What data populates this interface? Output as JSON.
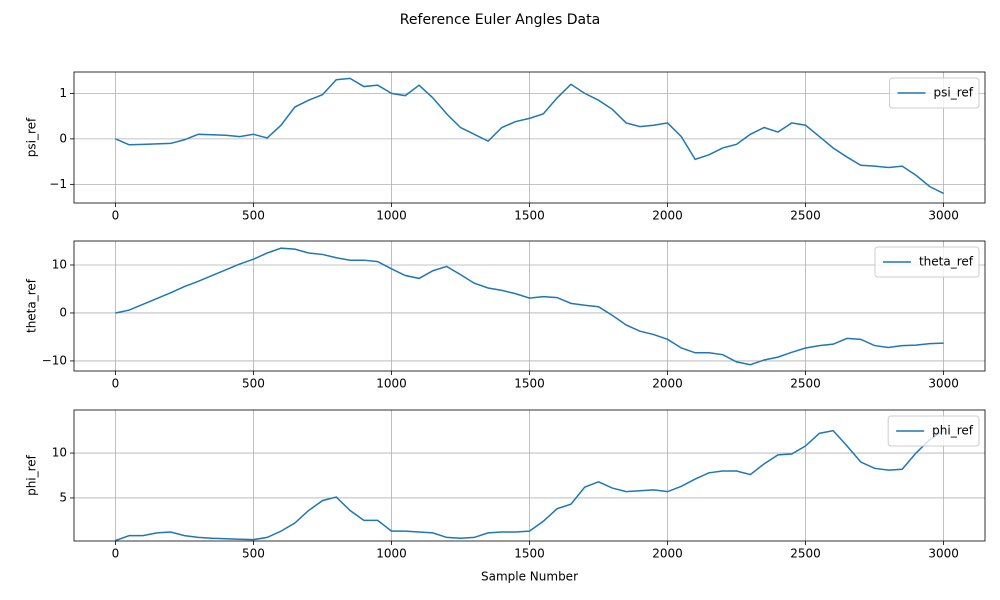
{
  "title": "Reference Euler Angles Data",
  "chart_data": [
    {
      "type": "line",
      "ylabel": "psi_ref",
      "x": [
        0,
        50,
        100,
        150,
        200,
        250,
        300,
        350,
        400,
        450,
        500,
        550,
        600,
        650,
        700,
        750,
        800,
        850,
        900,
        950,
        1000,
        1050,
        1100,
        1150,
        1200,
        1250,
        1300,
        1350,
        1400,
        1450,
        1500,
        1550,
        1600,
        1650,
        1700,
        1750,
        1800,
        1850,
        1900,
        1950,
        2000,
        2050,
        2100,
        2150,
        2200,
        2250,
        2300,
        2350,
        2400,
        2450,
        2500,
        2550,
        2600,
        2650,
        2700,
        2750,
        2800,
        2850,
        2900,
        2950,
        3000
      ],
      "series": [
        {
          "name": "psi_ref",
          "color": "#1f77b4",
          "values": [
            0,
            -0.13,
            -0.12,
            -0.11,
            -0.1,
            -0.02,
            0.1,
            0.09,
            0.08,
            0.05,
            0.1,
            0.02,
            0.3,
            0.7,
            0.85,
            0.97,
            1.3,
            1.33,
            1.15,
            1.18,
            1.0,
            0.95,
            1.18,
            0.9,
            0.55,
            0.25,
            0.1,
            -0.05,
            0.25,
            0.38,
            0.45,
            0.55,
            0.9,
            1.2,
            1.0,
            0.85,
            0.65,
            0.35,
            0.27,
            0.3,
            0.35,
            0.05,
            -0.45,
            -0.35,
            -0.2,
            -0.12,
            0.1,
            0.25,
            0.15,
            0.35,
            0.3,
            0.05,
            -0.2,
            -0.4,
            -0.58,
            -0.6,
            -0.63,
            -0.6,
            -0.8,
            -1.05,
            -1.2
          ]
        }
      ],
      "xlim": [
        -150,
        3150
      ],
      "ylim": [
        -1.41,
        1.47
      ],
      "xticks": [
        0,
        500,
        1000,
        1500,
        2000,
        2500,
        3000
      ],
      "yticks": [
        {
          "value": -1,
          "label": "−1"
        },
        0,
        1
      ],
      "grid": true,
      "legend": "upper-right"
    },
    {
      "type": "line",
      "ylabel": "theta_ref",
      "x": [
        0,
        50,
        100,
        150,
        200,
        250,
        300,
        350,
        400,
        450,
        500,
        550,
        600,
        650,
        700,
        750,
        800,
        850,
        900,
        950,
        1000,
        1050,
        1100,
        1150,
        1200,
        1250,
        1300,
        1350,
        1400,
        1450,
        1500,
        1550,
        1600,
        1650,
        1700,
        1750,
        1800,
        1850,
        1900,
        1950,
        2000,
        2050,
        2100,
        2150,
        2200,
        2250,
        2300,
        2350,
        2400,
        2450,
        2500,
        2550,
        2600,
        2650,
        2700,
        2750,
        2800,
        2850,
        2900,
        2950,
        3000
      ],
      "series": [
        {
          "name": "theta_ref",
          "color": "#1f77b4",
          "values": [
            0,
            0.6,
            1.8,
            3,
            4.2,
            5.5,
            6.6,
            7.8,
            9,
            10.2,
            11.2,
            12.5,
            13.5,
            13.3,
            12.5,
            12.2,
            11.5,
            11,
            11,
            10.7,
            9.2,
            7.8,
            7.2,
            8.8,
            9.7,
            8,
            6.2,
            5.2,
            4.7,
            4,
            3.1,
            3.4,
            3.2,
            2,
            1.6,
            1.3,
            -0.5,
            -2.5,
            -3.8,
            -4.5,
            -5.5,
            -7.3,
            -8.3,
            -8.3,
            -8.7,
            -10.2,
            -10.8,
            -9.8,
            -9.2,
            -8.2,
            -7.3,
            -6.8,
            -6.5,
            -5.3,
            -5.5,
            -6.8,
            -7.2,
            -6.8,
            -6.7,
            -6.4,
            -6.3
          ]
        }
      ],
      "xlim": [
        -150,
        3150
      ],
      "ylim": [
        -12.1,
        15
      ],
      "xticks": [
        0,
        500,
        1000,
        1500,
        2000,
        2500,
        3000
      ],
      "yticks": [
        {
          "value": -10,
          "label": "−10"
        },
        0,
        10
      ],
      "grid": true,
      "legend": "upper-right"
    },
    {
      "type": "line",
      "ylabel": "phi_ref",
      "xlabel": "Sample Number",
      "x": [
        0,
        50,
        100,
        150,
        200,
        250,
        300,
        350,
        400,
        450,
        500,
        550,
        600,
        650,
        700,
        750,
        800,
        850,
        900,
        950,
        1000,
        1050,
        1100,
        1150,
        1200,
        1250,
        1300,
        1350,
        1400,
        1450,
        1500,
        1550,
        1600,
        1650,
        1700,
        1750,
        1800,
        1850,
        1900,
        1950,
        2000,
        2050,
        2100,
        2150,
        2200,
        2250,
        2300,
        2350,
        2400,
        2450,
        2500,
        2550,
        2600,
        2650,
        2700,
        2750,
        2800,
        2850,
        2900,
        2950,
        3000
      ],
      "series": [
        {
          "name": "phi_ref",
          "color": "#1f77b4",
          "values": [
            0.25,
            0.8,
            0.8,
            1.1,
            1.2,
            0.8,
            0.6,
            0.5,
            0.45,
            0.4,
            0.35,
            0.6,
            1.3,
            2.2,
            3.6,
            4.7,
            5.1,
            3.6,
            2.5,
            2.5,
            1.3,
            1.3,
            1.2,
            1.1,
            0.6,
            0.5,
            0.6,
            1.1,
            1.2,
            1.2,
            1.3,
            2.4,
            3.8,
            4.3,
            6.2,
            6.8,
            6.1,
            5.7,
            5.8,
            5.9,
            5.7,
            6.3,
            7.1,
            7.8,
            8,
            8,
            7.6,
            8.8,
            9.8,
            9.9,
            10.8,
            12.2,
            12.5,
            10.8,
            9,
            8.3,
            8.1,
            8.2,
            10,
            11.5,
            12.5
          ]
        }
      ],
      "xlim": [
        -150,
        3150
      ],
      "ylim": [
        0.2,
        14.8
      ],
      "xticks": [
        0,
        500,
        1000,
        1500,
        2000,
        2500,
        3000
      ],
      "yticks": [
        5,
        10
      ],
      "grid": true,
      "legend": "upper-right"
    }
  ]
}
